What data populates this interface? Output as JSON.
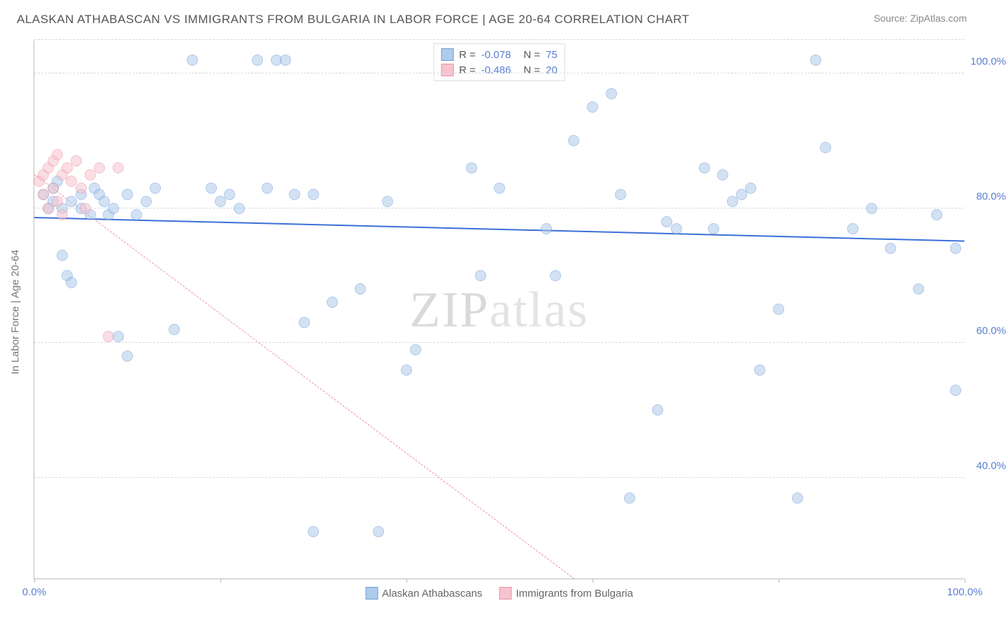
{
  "title": "ALASKAN ATHABASCAN VS IMMIGRANTS FROM BULGARIA IN LABOR FORCE | AGE 20-64 CORRELATION CHART",
  "source": "Source: ZipAtlas.com",
  "watermark": "ZIPatlas",
  "chart": {
    "type": "scatter",
    "y_axis_title": "In Labor Force | Age 20-64",
    "background_color": "#ffffff",
    "grid_color": "#d8d8d8",
    "axis_color": "#bbbbbb",
    "tick_label_color": "#5b7fd1",
    "xlim": [
      0,
      100
    ],
    "ylim": [
      25,
      105
    ],
    "x_ticks": [
      0,
      20,
      40,
      60,
      80,
      100
    ],
    "x_tick_labels": {
      "0": "0.0%",
      "100": "100.0%"
    },
    "y_ticks": [
      40,
      60,
      80,
      100
    ],
    "y_tick_labels": {
      "40": "40.0%",
      "60": "60.0%",
      "80": "80.0%",
      "100": "100.0%"
    },
    "marker_radius": 8,
    "marker_opacity": 0.55,
    "series": [
      {
        "name": "Alaskan Athabascans",
        "fill_color": "#aecbeb",
        "stroke_color": "#6f9bd8",
        "line_color": "#3a6fd8",
        "line_width": 2,
        "line_style": "solid",
        "R": "-0.078",
        "N": "75",
        "trend": {
          "x1": 0,
          "y1": 78.5,
          "x2": 100,
          "y2": 75.0
        },
        "points": [
          [
            1,
            82
          ],
          [
            1.5,
            80
          ],
          [
            2,
            81
          ],
          [
            2,
            83
          ],
          [
            2.5,
            84
          ],
          [
            3,
            80
          ],
          [
            3,
            73
          ],
          [
            3.5,
            70
          ],
          [
            4,
            81
          ],
          [
            4,
            69
          ],
          [
            5,
            80
          ],
          [
            5,
            82
          ],
          [
            6,
            79
          ],
          [
            6.5,
            83
          ],
          [
            7,
            82
          ],
          [
            7.5,
            81
          ],
          [
            8,
            79
          ],
          [
            8.5,
            80
          ],
          [
            9,
            61
          ],
          [
            10,
            58
          ],
          [
            10,
            82
          ],
          [
            11,
            79
          ],
          [
            12,
            81
          ],
          [
            13,
            83
          ],
          [
            15,
            62
          ],
          [
            17,
            102
          ],
          [
            19,
            83
          ],
          [
            20,
            81
          ],
          [
            21,
            82
          ],
          [
            22,
            80
          ],
          [
            24,
            102
          ],
          [
            25,
            83
          ],
          [
            26,
            102
          ],
          [
            27,
            102
          ],
          [
            28,
            82
          ],
          [
            29,
            63
          ],
          [
            30,
            82
          ],
          [
            30,
            32
          ],
          [
            32,
            66
          ],
          [
            35,
            68
          ],
          [
            37,
            32
          ],
          [
            38,
            81
          ],
          [
            40,
            56
          ],
          [
            41,
            59
          ],
          [
            47,
            86
          ],
          [
            48,
            70
          ],
          [
            50,
            83
          ],
          [
            55,
            77
          ],
          [
            56,
            70
          ],
          [
            58,
            90
          ],
          [
            60,
            95
          ],
          [
            62,
            97
          ],
          [
            63,
            82
          ],
          [
            64,
            37
          ],
          [
            67,
            50
          ],
          [
            68,
            78
          ],
          [
            69,
            77
          ],
          [
            72,
            86
          ],
          [
            73,
            77
          ],
          [
            74,
            85
          ],
          [
            75,
            81
          ],
          [
            76,
            82
          ],
          [
            77,
            83
          ],
          [
            78,
            56
          ],
          [
            80,
            65
          ],
          [
            82,
            37
          ],
          [
            84,
            102
          ],
          [
            85,
            89
          ],
          [
            88,
            77
          ],
          [
            90,
            80
          ],
          [
            92,
            74
          ],
          [
            95,
            68
          ],
          [
            97,
            79
          ],
          [
            99,
            53
          ],
          [
            99,
            74
          ]
        ]
      },
      {
        "name": "Immigrants from Bulgaria",
        "fill_color": "#f6c4cf",
        "stroke_color": "#e98fa4",
        "line_color": "#e98fa4",
        "line_width": 1,
        "line_style": "dashed",
        "R": "-0.486",
        "N": "20",
        "trend": {
          "x1": 0,
          "y1": 85,
          "x2": 58,
          "y2": 25
        },
        "points": [
          [
            0.5,
            84
          ],
          [
            1,
            85
          ],
          [
            1,
            82
          ],
          [
            1.5,
            86
          ],
          [
            1.5,
            80
          ],
          [
            2,
            87
          ],
          [
            2,
            83
          ],
          [
            2.5,
            88
          ],
          [
            2.5,
            81
          ],
          [
            3,
            85
          ],
          [
            3,
            79
          ],
          [
            3.5,
            86
          ],
          [
            4,
            84
          ],
          [
            4.5,
            87
          ],
          [
            5,
            83
          ],
          [
            5.5,
            80
          ],
          [
            6,
            85
          ],
          [
            7,
            86
          ],
          [
            8,
            61
          ],
          [
            9,
            86
          ]
        ]
      }
    ],
    "legend_bottom": [
      {
        "label": "Alaskan Athabascans",
        "fill": "#aecbeb",
        "stroke": "#6f9bd8"
      },
      {
        "label": "Immigrants from Bulgaria",
        "fill": "#f6c4cf",
        "stroke": "#e98fa4"
      }
    ]
  }
}
